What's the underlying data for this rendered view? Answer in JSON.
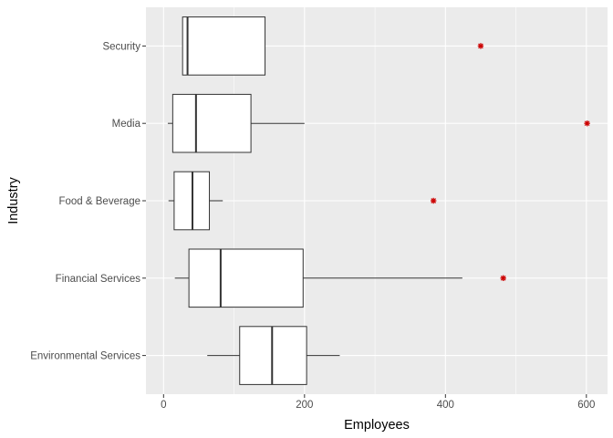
{
  "chart_data": {
    "type": "boxplot",
    "orientation": "horizontal",
    "xlabel": "Employees",
    "ylabel": "Industry",
    "xlim": [
      -25,
      630
    ],
    "x_ticks": [
      0,
      200,
      400,
      600
    ],
    "x_minor_ticks": [
      100,
      300,
      500
    ],
    "grid": true,
    "colors": {
      "panel": "#ebebeb",
      "grid": "#ffffff",
      "box_fill": "#ffffff",
      "box_line": "#333333",
      "outlier": "#cc0000"
    },
    "categories": [
      "Environmental Services",
      "Financial Services",
      "Food & Beverage",
      "Media",
      "Security"
    ],
    "boxes": [
      {
        "category": "Environmental Services",
        "whisker_low": 62,
        "q1": 108,
        "median": 154,
        "q3": 203,
        "whisker_high": 250,
        "outliers": []
      },
      {
        "category": "Financial Services",
        "whisker_low": 16,
        "q1": 36,
        "median": 81,
        "q3": 198,
        "whisker_high": 424,
        "outliers": [
          482
        ]
      },
      {
        "category": "Food & Beverage",
        "whisker_low": 7,
        "q1": 15,
        "median": 41,
        "q3": 65,
        "whisker_high": 84,
        "outliers": [
          383
        ]
      },
      {
        "category": "Media",
        "whisker_low": 6,
        "q1": 13,
        "median": 46,
        "q3": 124,
        "whisker_high": 200,
        "outliers": [
          601
        ]
      },
      {
        "category": "Security",
        "whisker_low": 27,
        "q1": 27,
        "median": 34,
        "q3": 144,
        "whisker_high": 144,
        "outliers": [
          450
        ]
      }
    ]
  }
}
